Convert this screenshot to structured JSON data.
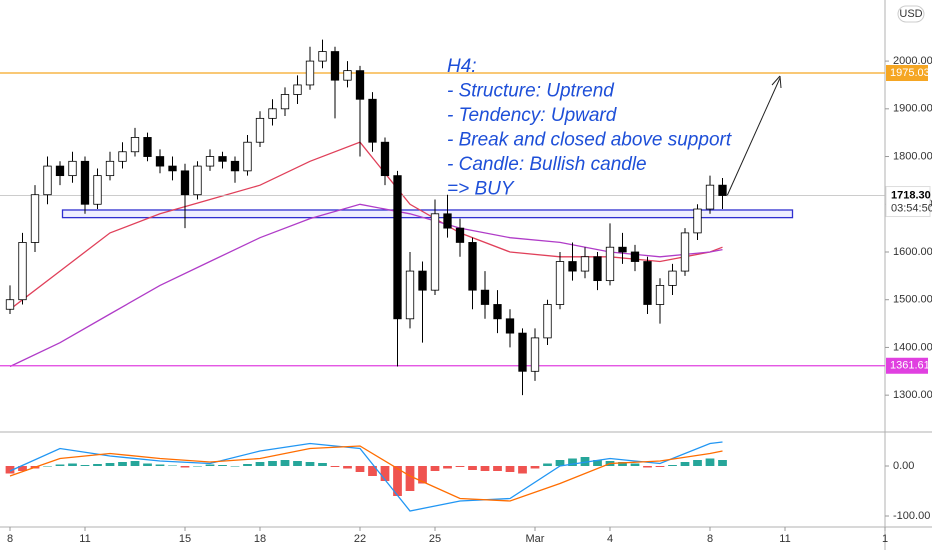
{
  "chart_data": [
    {
      "type": "candlestick",
      "currency": "USD",
      "xlim": [
        -0.4,
        35
      ],
      "xticks": [
        {
          "value": 0,
          "label": "8"
        },
        {
          "value": 3,
          "label": "11"
        },
        {
          "value": 7,
          "label": "15"
        },
        {
          "value": 10,
          "label": "18"
        },
        {
          "value": 14,
          "label": "22"
        },
        {
          "value": 17,
          "label": "25"
        },
        {
          "value": 21,
          "label": "Mar"
        },
        {
          "value": 24,
          "label": "4"
        },
        {
          "value": 28,
          "label": "8"
        },
        {
          "value": 31,
          "label": "11"
        },
        {
          "value": 35,
          "label": "1"
        }
      ],
      "ylim": [
        1227,
        2128
      ],
      "yticks": [
        {
          "value": 1300,
          "label": "1300.00"
        },
        {
          "value": 1400,
          "label": "1400.00"
        },
        {
          "value": 1500,
          "label": "1500.00"
        },
        {
          "value": 1600,
          "label": "1600.00"
        },
        {
          "value": 1700,
          "label": "1700.00"
        },
        {
          "value": 1800,
          "label": "1800.00"
        },
        {
          "value": 1900,
          "label": "1900.00"
        },
        {
          "value": 2000,
          "label": "2000.00"
        }
      ],
      "up_color": "#ffffff",
      "down_color": "#000000",
      "wick_color": "#000000",
      "x": [
        0,
        0.5,
        1,
        1.5,
        2,
        2.5,
        3,
        3.5,
        4,
        4.5,
        5,
        5.5,
        6,
        6.5,
        7,
        7.5,
        8,
        8.5,
        9,
        9.5,
        10,
        10.5,
        11,
        11.5,
        12,
        12.5,
        13,
        13.5,
        14,
        14.5,
        15,
        15.5,
        16,
        16.5,
        17,
        17.5,
        18,
        18.5,
        19,
        19.5,
        20,
        20.5,
        21,
        21.5,
        22,
        22.5,
        23,
        23.5,
        24,
        24.5,
        25,
        25.5,
        26,
        26.5,
        27,
        27.5,
        28,
        28.5
      ],
      "ohlc": [
        [
          1480,
          1530,
          1470,
          1500
        ],
        [
          1500,
          1640,
          1490,
          1620
        ],
        [
          1620,
          1740,
          1600,
          1720
        ],
        [
          1720,
          1800,
          1700,
          1780
        ],
        [
          1780,
          1790,
          1740,
          1760
        ],
        [
          1760,
          1810,
          1745,
          1790
        ],
        [
          1790,
          1800,
          1680,
          1700
        ],
        [
          1700,
          1775,
          1690,
          1760
        ],
        [
          1760,
          1810,
          1750,
          1790
        ],
        [
          1790,
          1830,
          1775,
          1810
        ],
        [
          1810,
          1860,
          1800,
          1840
        ],
        [
          1840,
          1850,
          1790,
          1800
        ],
        [
          1800,
          1815,
          1765,
          1780
        ],
        [
          1780,
          1800,
          1750,
          1770
        ],
        [
          1770,
          1785,
          1650,
          1720
        ],
        [
          1720,
          1790,
          1710,
          1780
        ],
        [
          1780,
          1815,
          1770,
          1800
        ],
        [
          1800,
          1810,
          1775,
          1790
        ],
        [
          1790,
          1800,
          1745,
          1770
        ],
        [
          1770,
          1845,
          1760,
          1830
        ],
        [
          1830,
          1895,
          1820,
          1880
        ],
        [
          1880,
          1920,
          1865,
          1900
        ],
        [
          1900,
          1945,
          1885,
          1930
        ],
        [
          1930,
          1970,
          1910,
          1950
        ],
        [
          1950,
          2030,
          1940,
          2000
        ],
        [
          2000,
          2045,
          1985,
          2020
        ],
        [
          2020,
          2030,
          1880,
          1960
        ],
        [
          1960,
          2000,
          1945,
          1980
        ],
        [
          1980,
          1990,
          1800,
          1920
        ],
        [
          1920,
          1935,
          1810,
          1830
        ],
        [
          1830,
          1840,
          1740,
          1760
        ],
        [
          1760,
          1770,
          1360,
          1460
        ],
        [
          1460,
          1600,
          1440,
          1560
        ],
        [
          1560,
          1580,
          1410,
          1520
        ],
        [
          1520,
          1710,
          1510,
          1680
        ],
        [
          1680,
          1720,
          1630,
          1650
        ],
        [
          1650,
          1670,
          1590,
          1620
        ],
        [
          1620,
          1630,
          1480,
          1520
        ],
        [
          1520,
          1560,
          1460,
          1490
        ],
        [
          1490,
          1520,
          1430,
          1460
        ],
        [
          1460,
          1480,
          1400,
          1430
        ],
        [
          1430,
          1440,
          1300,
          1350
        ],
        [
          1350,
          1440,
          1330,
          1420
        ],
        [
          1420,
          1500,
          1405,
          1490
        ],
        [
          1490,
          1600,
          1480,
          1580
        ],
        [
          1580,
          1620,
          1540,
          1560
        ],
        [
          1560,
          1610,
          1545,
          1590
        ],
        [
          1590,
          1600,
          1520,
          1540
        ],
        [
          1540,
          1660,
          1530,
          1610
        ],
        [
          1610,
          1640,
          1575,
          1600
        ],
        [
          1600,
          1615,
          1560,
          1580
        ],
        [
          1580,
          1590,
          1470,
          1490
        ],
        [
          1490,
          1545,
          1450,
          1530
        ],
        [
          1530,
          1575,
          1510,
          1560
        ],
        [
          1560,
          1650,
          1550,
          1640
        ],
        [
          1640,
          1700,
          1625,
          1690
        ],
        [
          1690,
          1760,
          1680,
          1740
        ],
        [
          1740,
          1755,
          1690,
          1718.3
        ]
      ],
      "lines": [
        {
          "color": "#e0405a",
          "x": [
            0,
            2,
            4,
            6,
            8,
            10,
            12,
            14,
            16,
            18,
            20,
            22,
            24,
            26,
            28,
            28.5
          ],
          "values": [
            1480,
            1560,
            1640,
            1680,
            1710,
            1740,
            1790,
            1830,
            1700,
            1640,
            1600,
            1590,
            1590,
            1580,
            1600,
            1610
          ]
        },
        {
          "color": "#b03cc8",
          "x": [
            0,
            2,
            4,
            6,
            8,
            10,
            12,
            14,
            16,
            18,
            20,
            22,
            24,
            26,
            28,
            28.5
          ],
          "values": [
            1360,
            1410,
            1470,
            1530,
            1580,
            1630,
            1670,
            1700,
            1680,
            1650,
            1630,
            1620,
            1600,
            1590,
            1600,
            1605
          ]
        }
      ],
      "zone": [
        1672,
        1688
      ],
      "zone_x": [
        2.1,
        31.3
      ],
      "zone_color": "#3030d0",
      "levels": [
        {
          "value": 1975.03,
          "color": "#f5a623"
        },
        {
          "value": 1361.61,
          "color": "#e040e0"
        }
      ],
      "last_price": {
        "value": 1718.3,
        "label": "1718.30",
        "timer": "03:54:50"
      },
      "annotation": [
        "H4:",
        "- Structure: Uptrend",
        "- Tendency: Upward",
        "- Break and closed above support",
        "- Candle: Bullish candle",
        "=> BUY"
      ],
      "annotation_color": "#1e4fd8"
    },
    {
      "type": "macd",
      "ylim": [
        -118,
        66
      ],
      "yticks": [
        {
          "value": 0,
          "label": "0.00"
        },
        {
          "value": -100,
          "label": "-100.00"
        }
      ],
      "histogram": [
        -15,
        -10,
        -5,
        0,
        3,
        5,
        2,
        4,
        6,
        8,
        10,
        5,
        3,
        1,
        -3,
        0,
        3,
        2,
        0,
        4,
        8,
        10,
        12,
        10,
        8,
        6,
        -2,
        -5,
        -12,
        -20,
        -30,
        -60,
        -50,
        -35,
        -10,
        -5,
        -2,
        -8,
        -10,
        -10,
        -12,
        -15,
        -5,
        5,
        12,
        15,
        18,
        12,
        10,
        8,
        5,
        -3,
        -2,
        2,
        8,
        12,
        15,
        12
      ],
      "up_color": "#26a69a",
      "down_color": "#ef5350",
      "lines": [
        {
          "color": "#2196f3",
          "x": [
            0,
            2,
            4,
            6,
            8,
            10,
            12,
            14,
            16,
            18,
            20,
            22,
            24,
            26,
            28,
            28.5
          ],
          "values": [
            -10,
            35,
            20,
            10,
            5,
            30,
            45,
            35,
            -90,
            -70,
            -65,
            0,
            15,
            5,
            45,
            48
          ]
        },
        {
          "color": "#ff6d00",
          "x": [
            0,
            2,
            4,
            6,
            8,
            10,
            12,
            14,
            16,
            18,
            20,
            22,
            24,
            26,
            28,
            28.5
          ],
          "values": [
            -20,
            15,
            25,
            15,
            8,
            15,
            35,
            40,
            -20,
            -65,
            -70,
            -35,
            5,
            10,
            25,
            30
          ]
        }
      ]
    }
  ]
}
